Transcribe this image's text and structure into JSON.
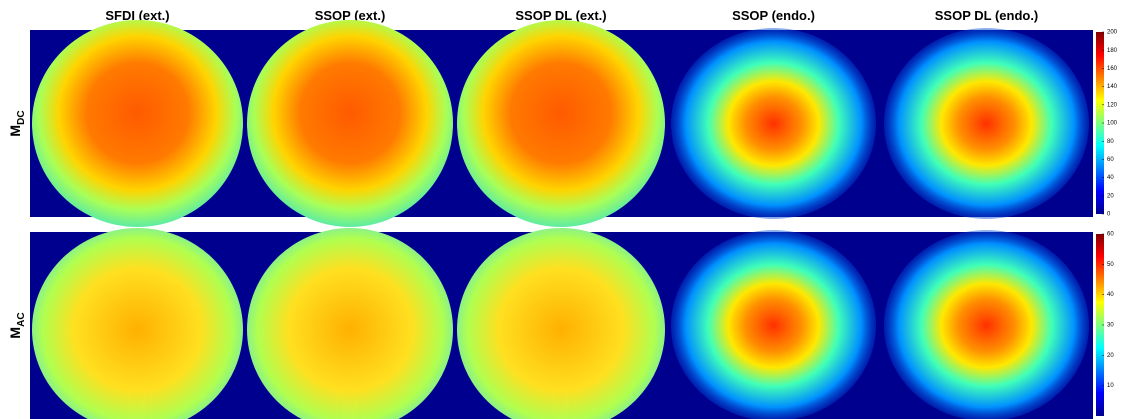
{
  "columns": [
    "SFDI (ext.)",
    "SSOP (ext.)",
    "SSOP DL (ext.)",
    "SSOP (endo.)",
    "SSOP DL (endo.)"
  ],
  "rows": [
    {
      "label": "M",
      "subscript": "DC"
    },
    {
      "label": "M",
      "subscript": "AC"
    }
  ],
  "colorbars": [
    {
      "lim": [
        0,
        200
      ],
      "ticks": [
        0,
        20,
        40,
        60,
        80,
        100,
        120,
        140,
        160,
        180,
        200
      ]
    },
    {
      "lim": [
        0,
        60
      ],
      "ticks": [
        10,
        20,
        30,
        40,
        50,
        60
      ]
    }
  ]
}
